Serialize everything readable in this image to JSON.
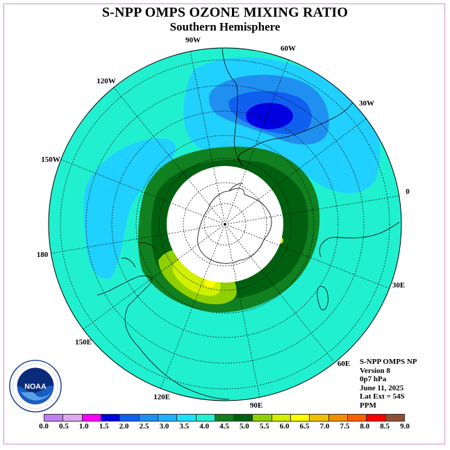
{
  "title": "S-NPP OMPS OZONE MIXING RATIO",
  "subtitle": "Southern Hemisphere",
  "longitude_labels": {
    "w90": "90W",
    "w60": "60W",
    "w30": "30W",
    "w120": "120W",
    "w150": "150W",
    "zero": "0",
    "e180": "180",
    "e30": "30E",
    "e150": "150E",
    "e60": "60E",
    "e120": "120E",
    "e90": "90E"
  },
  "info": {
    "instrument": "S-NPP OMPS NP",
    "version": "Version 8",
    "pressure": "0p7 hPa",
    "date": "June 11, 2025",
    "lat_ext": "Lat Ext = 54S",
    "units": "PPM"
  },
  "logo": {
    "text": "NOAA",
    "ring_text": "NATIONAL OCEANIC AND ATMOSPHERIC ADMINISTRATION · U.S. DEPARTMENT OF COMMERCE"
  },
  "colorbar": {
    "ticks": [
      "0.0",
      "0.5",
      "1.0",
      "1.5",
      "2.0",
      "2.5",
      "3.0",
      "3.5",
      "4.0",
      "4.5",
      "5.0",
      "5.5",
      "6.0",
      "6.5",
      "7.0",
      "7.5",
      "8.0",
      "8.5",
      "9.0"
    ],
    "colors": [
      "#c080f0",
      "#e0a8f0",
      "#ff00ff",
      "#0000e0",
      "#1060f0",
      "#2090f0",
      "#20b0ff",
      "#20e0ff",
      "#20f0d0",
      "#108020",
      "#006010",
      "#90d000",
      "#d0f000",
      "#ffff00",
      "#f0c000",
      "#f09000",
      "#ff6000",
      "#ff0000",
      "#905030"
    ]
  },
  "chart_data": {
    "type": "polar-map",
    "projection": "south polar stereographic",
    "quantity": "ozone mixing ratio",
    "units": "PPM",
    "pressure_level": "0p7 hPa",
    "date": "June 11, 2025",
    "lat_extent": "54S",
    "color_levels": [
      0.0,
      0.5,
      1.0,
      1.5,
      2.0,
      2.5,
      3.0,
      3.5,
      4.0,
      4.5,
      5.0,
      5.5,
      6.0,
      6.5,
      7.0,
      7.5,
      8.0,
      8.5,
      9.0
    ],
    "regions": [
      {
        "range": [
          3.5,
          4.0
        ],
        "description_value": "background outer ring"
      },
      {
        "range": [
          3.0,
          3.5
        ],
        "location": "near 60W–30W and 150W–180 outer latitudes"
      },
      {
        "range": [
          2.5,
          3.0
        ],
        "location": "around 45W outer latitudes"
      },
      {
        "range": [
          1.5,
          2.0
        ],
        "location": "minimum near 45W"
      },
      {
        "range": [
          4.0,
          5.0
        ],
        "location": "polar ring"
      },
      {
        "range": [
          5.0,
          6.5
        ],
        "location": "maximum near 150E–180"
      },
      {
        "range": "no data",
        "location": "polar night region south of ~70S"
      }
    ]
  }
}
